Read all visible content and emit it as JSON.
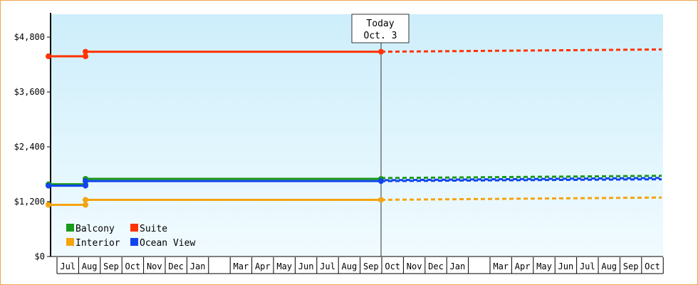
{
  "chart_data": {
    "type": "line",
    "title": "",
    "xlabel": "",
    "ylabel": "",
    "ylim": [
      0,
      5300
    ],
    "y_ticks": [
      {
        "value": 0,
        "label": "$0"
      },
      {
        "value": 1200,
        "label": "$1,200"
      },
      {
        "value": 2400,
        "label": "$2,400"
      },
      {
        "value": 3600,
        "label": "$3,600"
      },
      {
        "value": 4800,
        "label": "$4,800"
      }
    ],
    "month_labels": [
      "Jul",
      "Aug",
      "Sep",
      "Oct",
      "Nov",
      "Dec",
      "Jan",
      "",
      "Mar",
      "Apr",
      "May",
      "Jun",
      "Jul",
      "Aug",
      "Sep",
      "Oct",
      "Nov",
      "Dec",
      "Jan",
      "",
      "Mar",
      "Apr",
      "May",
      "Jun",
      "Jul",
      "Aug",
      "Sep",
      "Oct"
    ],
    "today_marker": {
      "line1": "Today",
      "line2": "Oct. 3",
      "x_index": 15
    },
    "background_gradient": [
      "#cdeefb",
      "#f1fbff"
    ],
    "grid": false,
    "legend_placement": "bottom-left",
    "series": [
      {
        "name": "Balcony",
        "color": "#1a9a1a",
        "history": [
          [
            -0.5,
            1580
          ],
          [
            1.2,
            1580
          ],
          [
            1.2,
            1700
          ],
          [
            15.0,
            1700
          ]
        ],
        "forecast": [
          [
            15.0,
            1700
          ],
          [
            26.7,
            1750
          ]
        ],
        "dashed_style": "green-blue"
      },
      {
        "name": "Suite",
        "color": "#ff3300",
        "history": [
          [
            -0.5,
            4380
          ],
          [
            1.2,
            4380
          ],
          [
            1.2,
            4480
          ],
          [
            15.0,
            4480
          ]
        ],
        "forecast": [
          [
            15.0,
            4480
          ],
          [
            26.7,
            4530
          ]
        ]
      },
      {
        "name": "Interior",
        "color": "#f5a30f",
        "history": [
          [
            -0.5,
            1130
          ],
          [
            1.2,
            1130
          ],
          [
            1.2,
            1240
          ],
          [
            15.0,
            1240
          ]
        ],
        "forecast": [
          [
            15.0,
            1240
          ],
          [
            26.7,
            1290
          ]
        ]
      },
      {
        "name": "Ocean View",
        "color": "#1144ee",
        "history": [
          [
            -0.5,
            1550
          ],
          [
            1.2,
            1550
          ],
          [
            1.2,
            1650
          ],
          [
            15.0,
            1650
          ]
        ],
        "forecast": [
          [
            15.0,
            1650
          ],
          [
            26.7,
            1690
          ]
        ]
      }
    ]
  }
}
